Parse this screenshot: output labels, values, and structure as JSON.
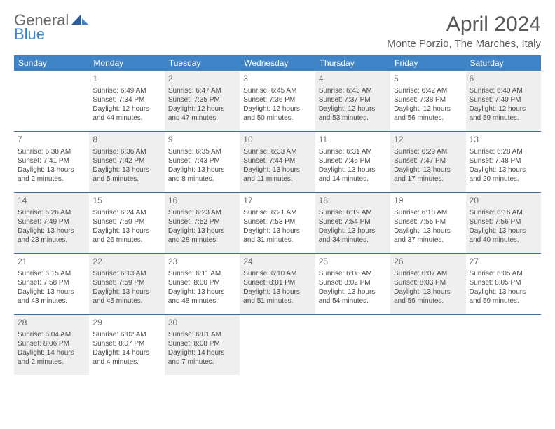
{
  "logo": {
    "word1": "General",
    "word2": "Blue"
  },
  "title": "April 2024",
  "location": "Monte Porzio, The Marches, Italy",
  "colors": {
    "header_bg": "#3e84c6",
    "header_text": "#ffffff",
    "rule": "#3e6fa0",
    "shade_bg": "#efefef",
    "body_text": "#4a4a4a",
    "title_text": "#5a5a5a"
  },
  "daysOfWeek": [
    "Sunday",
    "Monday",
    "Tuesday",
    "Wednesday",
    "Thursday",
    "Friday",
    "Saturday"
  ],
  "weeks": [
    [
      {
        "n": null
      },
      {
        "n": "1",
        "sr": "Sunrise: 6:49 AM",
        "ss": "Sunset: 7:34 PM",
        "dl1": "Daylight: 12 hours",
        "dl2": "and 44 minutes."
      },
      {
        "n": "2",
        "sr": "Sunrise: 6:47 AM",
        "ss": "Sunset: 7:35 PM",
        "dl1": "Daylight: 12 hours",
        "dl2": "and 47 minutes."
      },
      {
        "n": "3",
        "sr": "Sunrise: 6:45 AM",
        "ss": "Sunset: 7:36 PM",
        "dl1": "Daylight: 12 hours",
        "dl2": "and 50 minutes."
      },
      {
        "n": "4",
        "sr": "Sunrise: 6:43 AM",
        "ss": "Sunset: 7:37 PM",
        "dl1": "Daylight: 12 hours",
        "dl2": "and 53 minutes."
      },
      {
        "n": "5",
        "sr": "Sunrise: 6:42 AM",
        "ss": "Sunset: 7:38 PM",
        "dl1": "Daylight: 12 hours",
        "dl2": "and 56 minutes."
      },
      {
        "n": "6",
        "sr": "Sunrise: 6:40 AM",
        "ss": "Sunset: 7:40 PM",
        "dl1": "Daylight: 12 hours",
        "dl2": "and 59 minutes."
      }
    ],
    [
      {
        "n": "7",
        "sr": "Sunrise: 6:38 AM",
        "ss": "Sunset: 7:41 PM",
        "dl1": "Daylight: 13 hours",
        "dl2": "and 2 minutes."
      },
      {
        "n": "8",
        "sr": "Sunrise: 6:36 AM",
        "ss": "Sunset: 7:42 PM",
        "dl1": "Daylight: 13 hours",
        "dl2": "and 5 minutes."
      },
      {
        "n": "9",
        "sr": "Sunrise: 6:35 AM",
        "ss": "Sunset: 7:43 PM",
        "dl1": "Daylight: 13 hours",
        "dl2": "and 8 minutes."
      },
      {
        "n": "10",
        "sr": "Sunrise: 6:33 AM",
        "ss": "Sunset: 7:44 PM",
        "dl1": "Daylight: 13 hours",
        "dl2": "and 11 minutes."
      },
      {
        "n": "11",
        "sr": "Sunrise: 6:31 AM",
        "ss": "Sunset: 7:46 PM",
        "dl1": "Daylight: 13 hours",
        "dl2": "and 14 minutes."
      },
      {
        "n": "12",
        "sr": "Sunrise: 6:29 AM",
        "ss": "Sunset: 7:47 PM",
        "dl1": "Daylight: 13 hours",
        "dl2": "and 17 minutes."
      },
      {
        "n": "13",
        "sr": "Sunrise: 6:28 AM",
        "ss": "Sunset: 7:48 PM",
        "dl1": "Daylight: 13 hours",
        "dl2": "and 20 minutes."
      }
    ],
    [
      {
        "n": "14",
        "sr": "Sunrise: 6:26 AM",
        "ss": "Sunset: 7:49 PM",
        "dl1": "Daylight: 13 hours",
        "dl2": "and 23 minutes."
      },
      {
        "n": "15",
        "sr": "Sunrise: 6:24 AM",
        "ss": "Sunset: 7:50 PM",
        "dl1": "Daylight: 13 hours",
        "dl2": "and 26 minutes."
      },
      {
        "n": "16",
        "sr": "Sunrise: 6:23 AM",
        "ss": "Sunset: 7:52 PM",
        "dl1": "Daylight: 13 hours",
        "dl2": "and 28 minutes."
      },
      {
        "n": "17",
        "sr": "Sunrise: 6:21 AM",
        "ss": "Sunset: 7:53 PM",
        "dl1": "Daylight: 13 hours",
        "dl2": "and 31 minutes."
      },
      {
        "n": "18",
        "sr": "Sunrise: 6:19 AM",
        "ss": "Sunset: 7:54 PM",
        "dl1": "Daylight: 13 hours",
        "dl2": "and 34 minutes."
      },
      {
        "n": "19",
        "sr": "Sunrise: 6:18 AM",
        "ss": "Sunset: 7:55 PM",
        "dl1": "Daylight: 13 hours",
        "dl2": "and 37 minutes."
      },
      {
        "n": "20",
        "sr": "Sunrise: 6:16 AM",
        "ss": "Sunset: 7:56 PM",
        "dl1": "Daylight: 13 hours",
        "dl2": "and 40 minutes."
      }
    ],
    [
      {
        "n": "21",
        "sr": "Sunrise: 6:15 AM",
        "ss": "Sunset: 7:58 PM",
        "dl1": "Daylight: 13 hours",
        "dl2": "and 43 minutes."
      },
      {
        "n": "22",
        "sr": "Sunrise: 6:13 AM",
        "ss": "Sunset: 7:59 PM",
        "dl1": "Daylight: 13 hours",
        "dl2": "and 45 minutes."
      },
      {
        "n": "23",
        "sr": "Sunrise: 6:11 AM",
        "ss": "Sunset: 8:00 PM",
        "dl1": "Daylight: 13 hours",
        "dl2": "and 48 minutes."
      },
      {
        "n": "24",
        "sr": "Sunrise: 6:10 AM",
        "ss": "Sunset: 8:01 PM",
        "dl1": "Daylight: 13 hours",
        "dl2": "and 51 minutes."
      },
      {
        "n": "25",
        "sr": "Sunrise: 6:08 AM",
        "ss": "Sunset: 8:02 PM",
        "dl1": "Daylight: 13 hours",
        "dl2": "and 54 minutes."
      },
      {
        "n": "26",
        "sr": "Sunrise: 6:07 AM",
        "ss": "Sunset: 8:03 PM",
        "dl1": "Daylight: 13 hours",
        "dl2": "and 56 minutes."
      },
      {
        "n": "27",
        "sr": "Sunrise: 6:05 AM",
        "ss": "Sunset: 8:05 PM",
        "dl1": "Daylight: 13 hours",
        "dl2": "and 59 minutes."
      }
    ],
    [
      {
        "n": "28",
        "sr": "Sunrise: 6:04 AM",
        "ss": "Sunset: 8:06 PM",
        "dl1": "Daylight: 14 hours",
        "dl2": "and 2 minutes."
      },
      {
        "n": "29",
        "sr": "Sunrise: 6:02 AM",
        "ss": "Sunset: 8:07 PM",
        "dl1": "Daylight: 14 hours",
        "dl2": "and 4 minutes."
      },
      {
        "n": "30",
        "sr": "Sunrise: 6:01 AM",
        "ss": "Sunset: 8:08 PM",
        "dl1": "Daylight: 14 hours",
        "dl2": "and 7 minutes."
      },
      {
        "n": null
      },
      {
        "n": null
      },
      {
        "n": null
      },
      {
        "n": null
      }
    ]
  ]
}
